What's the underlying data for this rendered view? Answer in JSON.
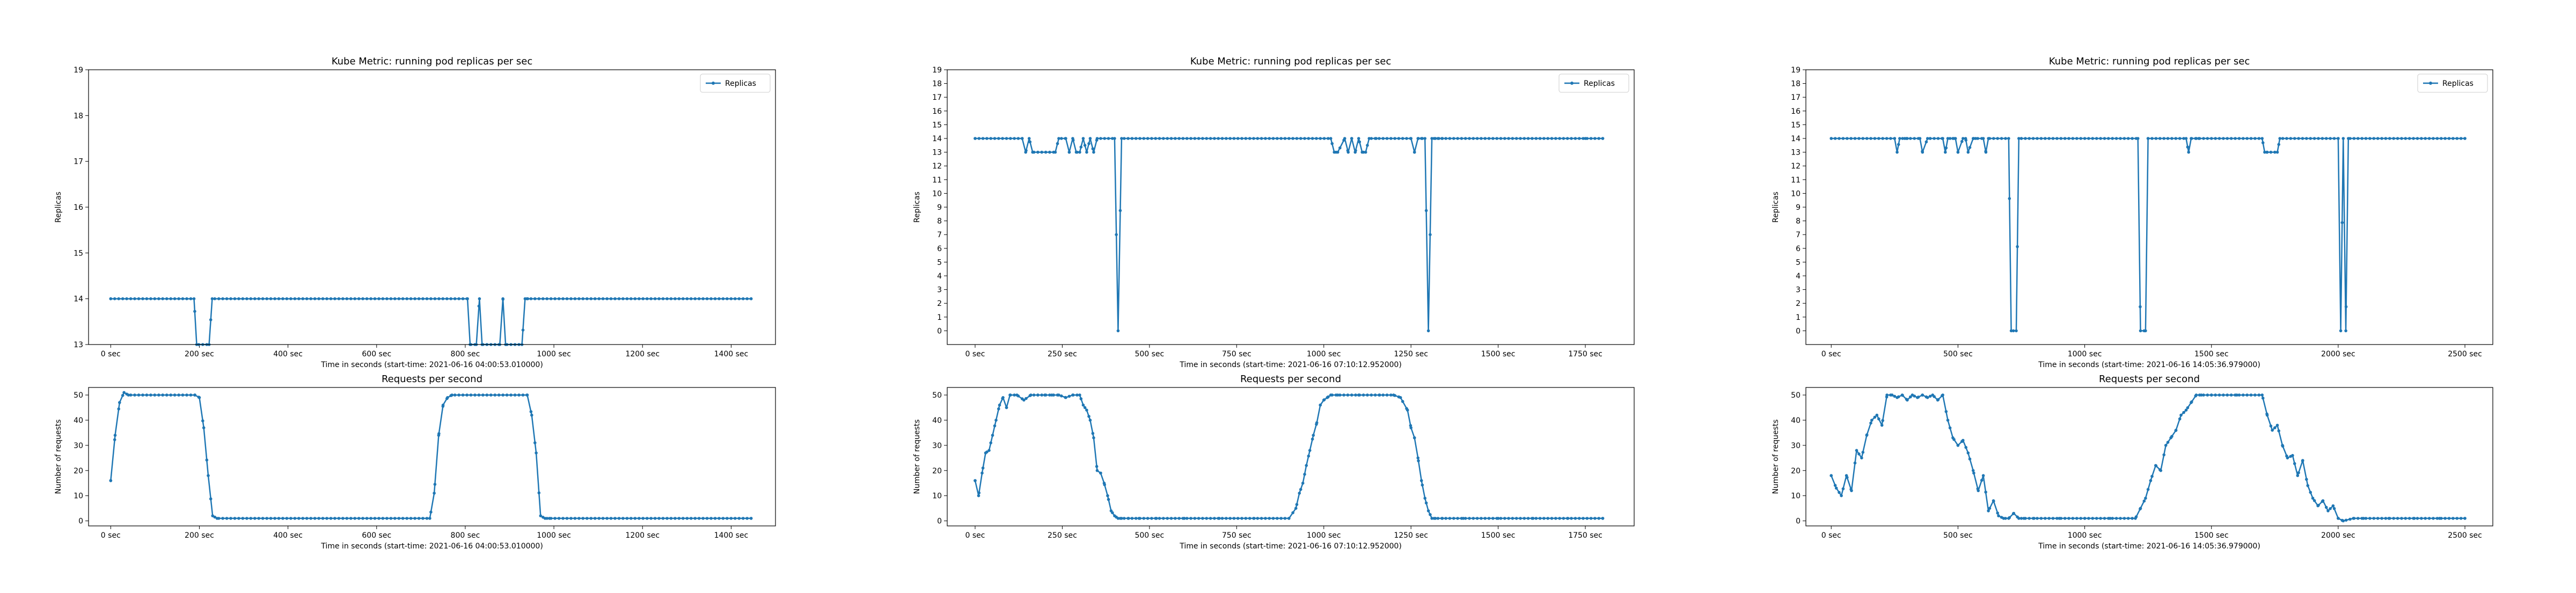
{
  "series_color": "#1f77b4",
  "chart_data": [
    {
      "type": "line",
      "column": 0,
      "row": 0,
      "title": "Kube Metric: running pod replicas per sec",
      "xlabel": "Time in seconds (start-time: 2021-06-16 04:00:53.010000)",
      "ylabel": "Replicas",
      "xlim": [
        -50,
        1500
      ],
      "ylim": [
        13,
        19
      ],
      "xticks": [
        0,
        200,
        400,
        600,
        800,
        1000,
        1200,
        1400
      ],
      "xtick_labels": [
        "0 sec",
        "200 sec",
        "400 sec",
        "600 sec",
        "800 sec",
        "1000 sec",
        "1200 sec",
        "1400 sec"
      ],
      "yticks": [
        13,
        14,
        15,
        16,
        17,
        18,
        19
      ],
      "ytick_labels": [
        "13",
        "14",
        "15",
        "16",
        "17",
        "18",
        "19"
      ],
      "legend": "upper right",
      "grid": false,
      "markers": true,
      "series": [
        {
          "name": "Replicas",
          "x": [
            0,
            188,
            194,
            222,
            229,
            805,
            811,
            825,
            832,
            838,
            878,
            885,
            891,
            928,
            935,
            941,
            1445
          ],
          "y": [
            14,
            14,
            13,
            13,
            14,
            14,
            13,
            13,
            14,
            13,
            13,
            14,
            13,
            13,
            14,
            14,
            14
          ]
        }
      ]
    },
    {
      "type": "line",
      "column": 0,
      "row": 1,
      "title": "Requests per second",
      "xlabel": "Time in seconds (start-time: 2021-06-16 04:00:53.010000)",
      "ylabel": "Number of requests",
      "xlim": [
        -50,
        1500
      ],
      "ylim": [
        -2,
        53
      ],
      "xticks": [
        0,
        200,
        400,
        600,
        800,
        1000,
        1200,
        1400
      ],
      "xtick_labels": [
        "0 sec",
        "200 sec",
        "400 sec",
        "600 sec",
        "800 sec",
        "1000 sec",
        "1200 sec",
        "1400 sec"
      ],
      "yticks": [
        0,
        10,
        20,
        30,
        40,
        50
      ],
      "ytick_labels": [
        "0",
        "10",
        "20",
        "30",
        "40",
        "50"
      ],
      "legend": "none",
      "grid": false,
      "markers": true,
      "series": [
        {
          "name": "",
          "x": [
            0,
            10,
            20,
            30,
            40,
            190,
            200,
            210,
            220,
            230,
            240,
            720,
            730,
            740,
            750,
            760,
            770,
            940,
            950,
            960,
            970,
            980,
            990,
            1445
          ],
          "y": [
            16,
            34,
            47,
            51,
            50,
            50,
            49,
            37,
            18,
            2,
            1,
            1,
            11,
            34,
            46,
            49,
            50,
            50,
            42,
            27,
            2,
            1,
            1,
            1
          ]
        }
      ]
    },
    {
      "type": "line",
      "column": 1,
      "row": 0,
      "title": "Kube Metric: running pod replicas per sec",
      "xlabel": "Time in seconds (start-time: 2021-06-16 07:10:12.952000)",
      "ylabel": "Replicas",
      "xlim": [
        -80,
        1890
      ],
      "ylim": [
        -1,
        19
      ],
      "xticks": [
        0,
        250,
        500,
        750,
        1000,
        1250,
        1500,
        1750
      ],
      "xtick_labels": [
        "0 sec",
        "250 sec",
        "500 sec",
        "750 sec",
        "1000 sec",
        "1250 sec",
        "1500 sec",
        "1750 sec"
      ],
      "yticks": [
        0,
        1,
        2,
        3,
        4,
        5,
        6,
        7,
        8,
        9,
        10,
        11,
        12,
        13,
        14,
        15,
        16,
        17,
        18,
        19
      ],
      "ytick_labels": [
        "0",
        "1",
        "2",
        "3",
        "4",
        "5",
        "6",
        "7",
        "8",
        "9",
        "10",
        "11",
        "12",
        "13",
        "14",
        "15",
        "16",
        "17",
        "18",
        "19"
      ],
      "legend": "upper right",
      "grid": false,
      "markers": true,
      "series": [
        {
          "name": "Replicas",
          "x": [
            0,
            135,
            145,
            155,
            165,
            230,
            240,
            260,
            270,
            280,
            290,
            300,
            310,
            320,
            330,
            340,
            350,
            400,
            410,
            420,
            1020,
            1030,
            1040,
            1060,
            1070,
            1080,
            1090,
            1100,
            1110,
            1120,
            1130,
            1150,
            1250,
            1260,
            1270,
            1280,
            1290,
            1300,
            1310,
            1320,
            1330,
            1340,
            1750,
            1800
          ],
          "y": [
            14,
            14,
            13,
            14,
            13,
            13,
            14,
            14,
            13,
            14,
            13,
            13,
            14,
            13,
            14,
            13,
            14,
            14,
            0,
            14,
            14,
            13,
            13,
            14,
            13,
            14,
            13,
            14,
            13,
            13,
            14,
            14,
            14,
            13,
            14,
            14,
            14,
            0,
            14,
            14,
            14,
            14,
            14,
            14
          ]
        }
      ]
    },
    {
      "type": "line",
      "column": 1,
      "row": 1,
      "title": "Requests per second",
      "xlabel": "Time in seconds (start-time: 2021-06-16 07:10:12.952000)",
      "ylabel": "Number of requests",
      "xlim": [
        -80,
        1890
      ],
      "ylim": [
        -2,
        53
      ],
      "xticks": [
        0,
        250,
        500,
        750,
        1000,
        1250,
        1500,
        1750
      ],
      "xtick_labels": [
        "0 sec",
        "250 sec",
        "500 sec",
        "750 sec",
        "1000 sec",
        "1250 sec",
        "1500 sec",
        "1750 sec"
      ],
      "yticks": [
        0,
        10,
        20,
        30,
        40,
        50
      ],
      "ytick_labels": [
        "0",
        "10",
        "20",
        "30",
        "40",
        "50"
      ],
      "legend": "none",
      "grid": false,
      "markers": true,
      "series": [
        {
          "name": "",
          "x": [
            0,
            10,
            20,
            30,
            40,
            50,
            60,
            70,
            80,
            90,
            100,
            120,
            140,
            160,
            180,
            200,
            220,
            240,
            260,
            280,
            300,
            310,
            320,
            330,
            340,
            350,
            360,
            370,
            380,
            390,
            400,
            410,
            420,
            440,
            470,
            520,
            600,
            700,
            800,
            900,
            920,
            930,
            940,
            950,
            960,
            970,
            980,
            990,
            1000,
            1010,
            1020,
            1040,
            1100,
            1160,
            1200,
            1220,
            1240,
            1250,
            1260,
            1270,
            1280,
            1290,
            1300,
            1310,
            1320,
            1340,
            1400,
            1500,
            1600,
            1700,
            1800
          ],
          "y": [
            16,
            10,
            19,
            27,
            28,
            34,
            40,
            46,
            49,
            45,
            50,
            50,
            48,
            50,
            50,
            50,
            50,
            50,
            49,
            50,
            50,
            46,
            44,
            40,
            33,
            20,
            19,
            15,
            10,
            4,
            2,
            1,
            1,
            1,
            1,
            1,
            1,
            1,
            1,
            1,
            5,
            11,
            15,
            22,
            28,
            34,
            39,
            46,
            48,
            49,
            50,
            50,
            50,
            50,
            50,
            49,
            44,
            37,
            33,
            25,
            16,
            9,
            4,
            1,
            1,
            1,
            1,
            1,
            1,
            1,
            1
          ]
        }
      ]
    },
    {
      "type": "line",
      "column": 2,
      "row": 0,
      "title": "Kube Metric: running pod replicas per sec",
      "xlabel": "Time in seconds (start-time: 2021-06-16 14:05:36.979000)",
      "ylabel": "Replicas",
      "xlim": [
        -100,
        2610
      ],
      "ylim": [
        -1,
        19
      ],
      "xticks": [
        0,
        500,
        1000,
        1500,
        2000,
        2500
      ],
      "xtick_labels": [
        "0 sec",
        "500 sec",
        "1000 sec",
        "1500 sec",
        "2000 sec",
        "2500 sec"
      ],
      "yticks": [
        0,
        1,
        2,
        3,
        4,
        5,
        6,
        7,
        8,
        9,
        10,
        11,
        12,
        13,
        14,
        15,
        16,
        17,
        18,
        19
      ],
      "ytick_labels": [
        "0",
        "1",
        "2",
        "3",
        "4",
        "5",
        "6",
        "7",
        "8",
        "9",
        "10",
        "11",
        "12",
        "13",
        "14",
        "15",
        "16",
        "17",
        "18",
        "19"
      ],
      "legend": "upper right",
      "grid": false,
      "markers": true,
      "series": [
        {
          "name": "Replicas",
          "x": [
            0,
            250,
            260,
            270,
            290,
            300,
            350,
            360,
            380,
            390,
            440,
            450,
            460,
            480,
            490,
            500,
            520,
            530,
            540,
            560,
            570,
            600,
            610,
            620,
            700,
            710,
            730,
            740,
            750,
            1210,
            1220,
            1240,
            1250,
            1400,
            1410,
            1420,
            1440,
            1450,
            1700,
            1710,
            1720,
            1760,
            1770,
            2000,
            2010,
            2020,
            2030,
            2040,
            2500
          ],
          "y": [
            14,
            14,
            13,
            14,
            14,
            14,
            14,
            13,
            14,
            14,
            14,
            13,
            14,
            14,
            14,
            13,
            14,
            14,
            13,
            14,
            14,
            14,
            13,
            14,
            14,
            0,
            0,
            14,
            14,
            14,
            0,
            0,
            14,
            14,
            13,
            14,
            14,
            14,
            14,
            13,
            13,
            13,
            14,
            14,
            0,
            14,
            0,
            14,
            14
          ]
        }
      ]
    },
    {
      "type": "line",
      "column": 2,
      "row": 1,
      "title": "Requests per second",
      "xlabel": "Time in seconds (start-time: 2021-06-16 14:05:36.979000)",
      "ylabel": "Number of requests",
      "xlim": [
        -100,
        2610
      ],
      "ylim": [
        -2,
        53
      ],
      "xticks": [
        0,
        500,
        1000,
        1500,
        2000,
        2500
      ],
      "xtick_labels": [
        "0 sec",
        "500 sec",
        "1000 sec",
        "1500 sec",
        "2000 sec",
        "2500 sec"
      ],
      "yticks": [
        0,
        10,
        20,
        30,
        40,
        50
      ],
      "ytick_labels": [
        "0",
        "10",
        "20",
        "30",
        "40",
        "50"
      ],
      "legend": "none",
      "grid": false,
      "markers": true,
      "series": [
        {
          "name": "",
          "x": [
            0,
            20,
            40,
            60,
            80,
            100,
            120,
            140,
            160,
            180,
            200,
            220,
            240,
            260,
            280,
            300,
            320,
            340,
            360,
            380,
            400,
            420,
            440,
            460,
            480,
            500,
            520,
            540,
            560,
            580,
            600,
            620,
            640,
            660,
            680,
            700,
            720,
            740,
            760,
            800,
            900,
            1000,
            1100,
            1200,
            1220,
            1240,
            1260,
            1280,
            1300,
            1320,
            1340,
            1360,
            1380,
            1400,
            1420,
            1440,
            1460,
            1500,
            1600,
            1700,
            1720,
            1740,
            1760,
            1780,
            1800,
            1820,
            1840,
            1860,
            1880,
            1900,
            1920,
            1940,
            1960,
            1980,
            2000,
            2020,
            2060,
            2100,
            2200,
            2300,
            2400,
            2500
          ],
          "y": [
            18,
            13,
            10,
            18,
            12,
            28,
            25,
            34,
            40,
            42,
            38,
            50,
            50,
            49,
            50,
            48,
            50,
            49,
            50,
            49,
            50,
            48,
            50,
            40,
            33,
            30,
            32,
            27,
            20,
            12,
            18,
            4,
            8,
            2,
            1,
            1,
            3,
            1,
            1,
            1,
            1,
            1,
            1,
            1,
            5,
            9,
            16,
            22,
            20,
            30,
            33,
            36,
            42,
            44,
            47,
            50,
            50,
            50,
            50,
            50,
            42,
            36,
            38,
            30,
            25,
            26,
            18,
            24,
            14,
            9,
            6,
            8,
            4,
            6,
            1,
            0,
            1,
            1,
            1,
            1,
            1,
            1
          ]
        }
      ]
    }
  ]
}
